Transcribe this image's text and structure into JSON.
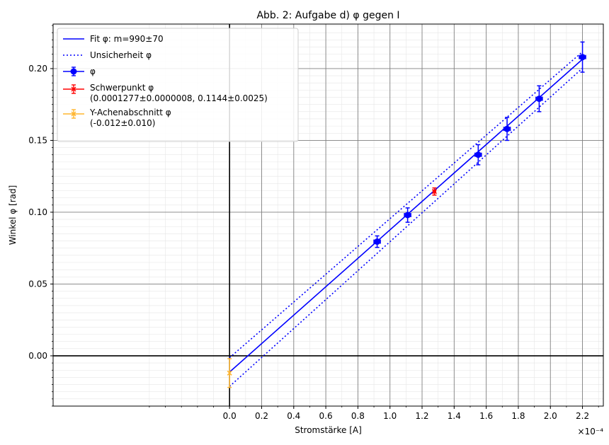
{
  "chart_data": {
    "type": "scatter",
    "title": "Abb. 2: Aufgabe d) φ gegen I",
    "xlabel": "Stromstärke [A]",
    "ylabel": "Winkel φ [rad]",
    "x_multiplier": "×10⁻⁴",
    "xlim": [
      -0.00011,
      0.000233
    ],
    "ylim": [
      -0.035,
      0.231
    ],
    "grid": true,
    "legend_position": "upper-left",
    "x_ticks": [
      0.0,
      0.2,
      0.4,
      0.6,
      0.8,
      1.0,
      1.2,
      1.4,
      1.6,
      1.8,
      2.0,
      2.2
    ],
    "x_tick_labels": [
      "0.0",
      "0.2",
      "0.4",
      "0.6",
      "0.8",
      "1.0",
      "1.2",
      "1.4",
      "1.6",
      "1.8",
      "2.0",
      "2.2"
    ],
    "y_ticks": [
      0.0,
      0.05,
      0.1,
      0.15,
      0.2
    ],
    "y_tick_labels": [
      "0.00",
      "0.05",
      "0.10",
      "0.15",
      "0.20"
    ],
    "series": [
      {
        "name": "φ",
        "color": "#0000ff",
        "marker": "circle",
        "x": [
          9.2e-05,
          0.000111,
          0.000155,
          0.000173,
          0.000193,
          0.00022
        ],
        "y": [
          0.0795,
          0.098,
          0.14,
          0.158,
          0.179,
          0.208
        ],
        "yerr": [
          0.004,
          0.005,
          0.007,
          0.008,
          0.009,
          0.0105
        ],
        "xerr": [
          2e-06,
          2e-06,
          2e-06,
          2e-06,
          2e-06,
          2e-06
        ]
      },
      {
        "name": "Schwerpunkt φ",
        "label_line2": "(0.0001277±0.0000008, 0.1144±0.0025)",
        "color": "#ff0000",
        "marker": "x",
        "x": [
          0.0001277
        ],
        "y": [
          0.1144
        ],
        "xerr": [
          8e-07
        ],
        "yerr": [
          0.0025
        ]
      },
      {
        "name": "Y-Achenabschnitt φ",
        "label_line2": "(-0.012±0.010)",
        "color": "#ffb52e",
        "marker": "x",
        "x": [
          0.0
        ],
        "y": [
          -0.012
        ],
        "xerr": [
          0.0
        ],
        "yerr": [
          0.01
        ]
      }
    ],
    "lines": [
      {
        "name": "Fit φ: m=990±70",
        "style": "solid",
        "color": "#0000ff",
        "x": [
          0.0,
          0.00022
        ],
        "y": [
          -0.0113,
          0.2065
        ]
      },
      {
        "name": "Unsicherheit φ",
        "style": "dotted",
        "color": "#0000ff",
        "x": [
          0.0,
          0.00022
        ],
        "y": [
          -0.0013,
          0.2117
        ]
      },
      {
        "style": "dotted",
        "color": "#0000ff",
        "x": [
          0.0,
          0.00022
        ],
        "y": [
          -0.0213,
          0.2003
        ]
      }
    ],
    "legend": [
      {
        "label": "Fit φ: m=990±70",
        "kind": "line-solid",
        "color": "#0000ff"
      },
      {
        "label": "Unsicherheit φ",
        "kind": "line-dotted",
        "color": "#0000ff"
      },
      {
        "label": "φ",
        "kind": "errbar-circle",
        "color": "#0000ff"
      },
      {
        "label": "Schwerpunkt φ",
        "label_line2": "(0.0001277±0.0000008, 0.1144±0.0025)",
        "kind": "errbar-x",
        "color": "#ff0000"
      },
      {
        "label": "Y-Achenabschnitt φ",
        "label_line2": "(-0.012±0.010)",
        "kind": "errbar-x",
        "color": "#ffb52e"
      }
    ]
  }
}
